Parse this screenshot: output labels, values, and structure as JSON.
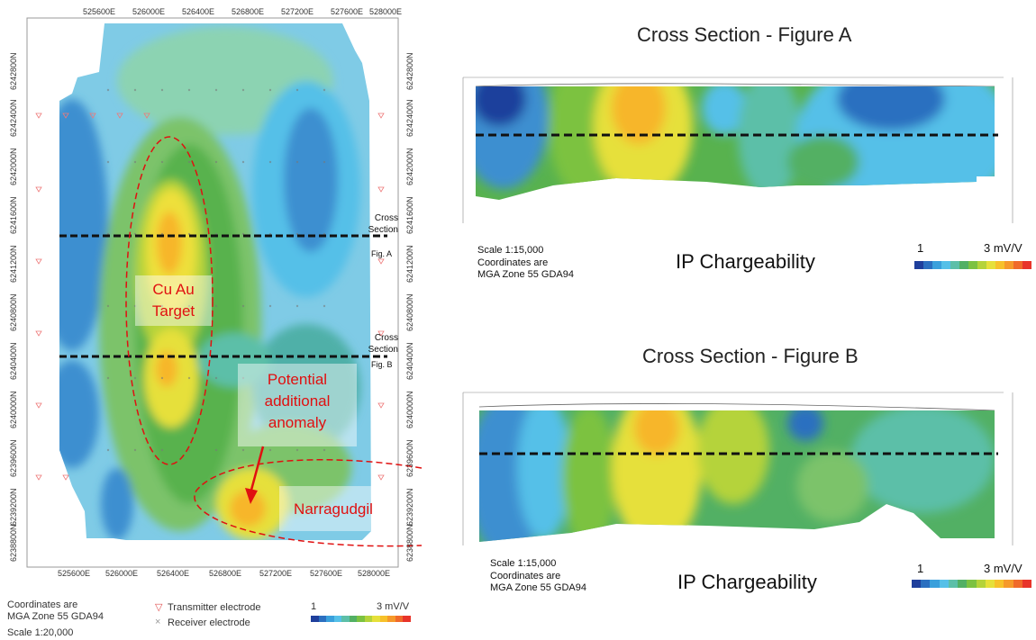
{
  "left_map": {
    "x_ticks": [
      "525600E",
      "526000E",
      "526400E",
      "526800E",
      "527200E",
      "527600E",
      "528000E"
    ],
    "y_ticks": [
      "6242800N",
      "6242400N",
      "6242000N",
      "6241600N",
      "6241200N",
      "6240800N",
      "6240400N",
      "6240000N",
      "6239600N",
      "6239200N",
      "6238800N"
    ],
    "target_label": [
      "Cu Au",
      "Target"
    ],
    "anomaly_label": [
      "Potential",
      "additional",
      "anomaly"
    ],
    "place_label": "Narragudgil",
    "section_a": {
      "line1": "Cross",
      "line2": "Section",
      "fig": "Fig. A"
    },
    "section_b": {
      "line1": "Cross",
      "line2": "Section",
      "fig": "Fig. B"
    }
  },
  "legend": {
    "coords_line1": "Coordinates are",
    "coords_line2": "MGA Zone 55 GDA94",
    "scale": "Scale 1:20,000",
    "transmitter_symbol": "▽",
    "transmitter": "Transmitter electrode",
    "receiver_symbol": "×",
    "receiver": "Receiver electrode",
    "scale_min": "1",
    "scale_max": "3 mV/V"
  },
  "section_a": {
    "title": "Cross Section - Figure A",
    "ip_title": "IP Chargeability",
    "scale": "Scale 1:15,000",
    "coords_line1": "Coordinates are",
    "coords_line2": "MGA Zone 55 GDA94",
    "scale_min": "1",
    "scale_max": "3 mV/V"
  },
  "section_b": {
    "title": "Cross Section - Figure B",
    "ip_title": "IP Chargeability",
    "scale": "Scale 1:15,000",
    "coords_line1": "Coordinates are",
    "coords_line2": "MGA Zone 55 GDA94",
    "scale_min": "1",
    "scale_max": "3 mV/V"
  },
  "colors": {
    "ramp": [
      "#1f3f9c",
      "#2b6fc0",
      "#3aa0dc",
      "#55c0e8",
      "#5cbfa8",
      "#52b064",
      "#7cc241",
      "#b5d33a",
      "#e6e03a",
      "#f7c12a",
      "#f6992a",
      "#f06a2a",
      "#e8342a"
    ],
    "annotation_red": "#e01010"
  }
}
